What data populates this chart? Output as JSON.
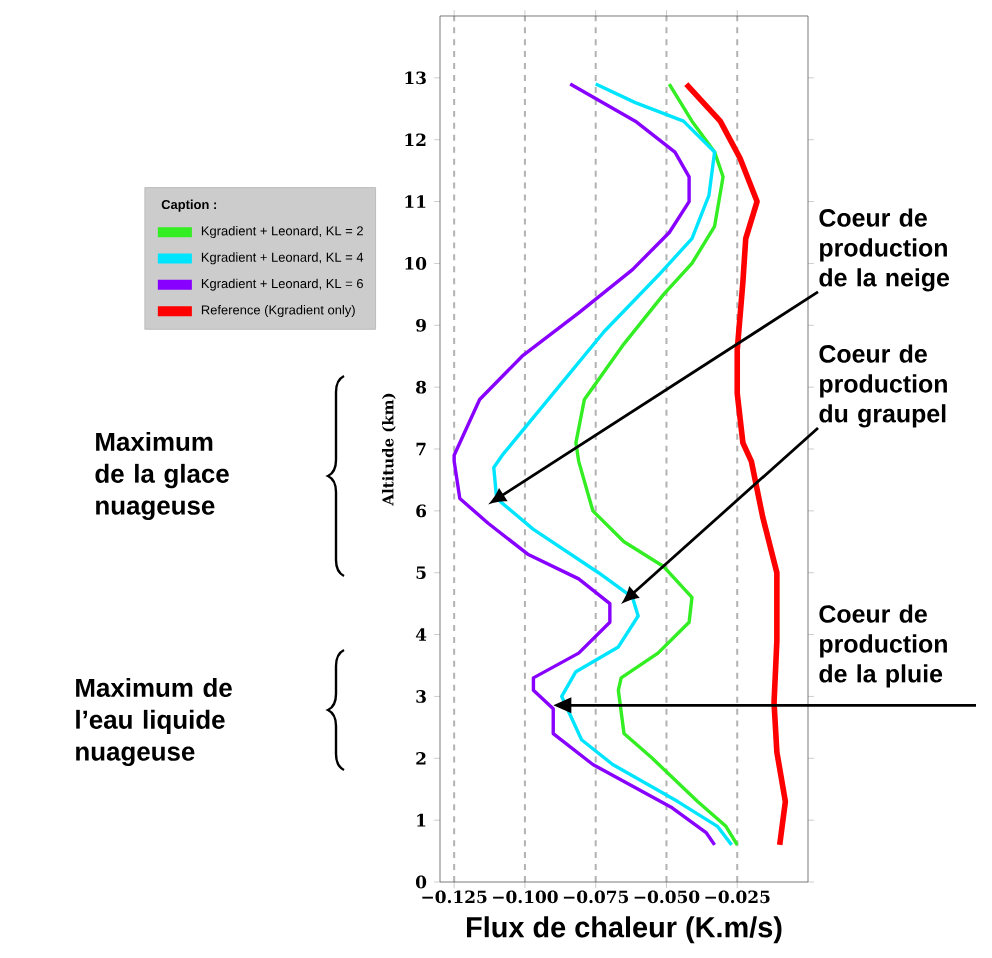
{
  "chart_data": {
    "type": "line",
    "xlabel": "Flux de chaleur (K.m/s)",
    "ylabel": "Altitude (km)",
    "legend_title": "Caption :",
    "xlim": [
      -0.13,
      0.0
    ],
    "ylim": [
      0,
      14
    ],
    "xticks": [
      {
        "value": -0.125,
        "label": "−0.125"
      },
      {
        "value": -0.1,
        "label": "−0.100"
      },
      {
        "value": -0.075,
        "label": "−0.075"
      },
      {
        "value": -0.05,
        "label": "−0.050"
      },
      {
        "value": -0.025,
        "label": "−0.025"
      }
    ],
    "yticks": [
      0,
      1,
      2,
      3,
      4,
      5,
      6,
      7,
      8,
      9,
      10,
      11,
      12,
      13
    ],
    "grid": "x",
    "legend": "left",
    "series": [
      {
        "name": "Kgradient + Leonard, KL = 2",
        "color": "#33ee22",
        "x": [
          -0.049,
          -0.041,
          -0.033,
          -0.03,
          -0.033,
          -0.041,
          -0.051,
          -0.065,
          -0.079,
          -0.082,
          -0.081,
          -0.076,
          -0.065,
          -0.051,
          -0.041,
          -0.042,
          -0.053,
          -0.066,
          -0.067,
          -0.065,
          -0.055,
          -0.039,
          -0.029,
          -0.025
        ],
        "values": [
          12.9,
          12.3,
          11.8,
          11.4,
          10.6,
          10.0,
          9.5,
          8.7,
          7.8,
          7.1,
          6.8,
          6.0,
          5.5,
          5.1,
          4.6,
          4.2,
          3.7,
          3.3,
          3.1,
          2.4,
          2.0,
          1.3,
          0.9,
          0.6
        ]
      },
      {
        "name": "Kgradient + Leonard, KL = 4",
        "color": "#00e5ff",
        "x": [
          -0.075,
          -0.061,
          -0.044,
          -0.033,
          -0.035,
          -0.041,
          -0.053,
          -0.072,
          -0.09,
          -0.108,
          -0.111,
          -0.11,
          -0.097,
          -0.074,
          -0.062,
          -0.06,
          -0.067,
          -0.082,
          -0.087,
          -0.08,
          -0.069,
          -0.046,
          -0.032,
          -0.027
        ],
        "values": [
          12.9,
          12.6,
          12.3,
          11.8,
          11.1,
          10.4,
          9.8,
          8.9,
          7.9,
          6.9,
          6.7,
          6.2,
          5.7,
          5.0,
          4.6,
          4.3,
          3.8,
          3.4,
          3.0,
          2.3,
          1.9,
          1.3,
          0.9,
          0.6
        ]
      },
      {
        "name": "Kgradient + Leonard, KL = 6",
        "color": "#8800ff",
        "x": [
          -0.084,
          -0.061,
          -0.047,
          -0.042,
          -0.042,
          -0.049,
          -0.062,
          -0.081,
          -0.101,
          -0.116,
          -0.125,
          -0.125,
          -0.123,
          -0.113,
          -0.099,
          -0.081,
          -0.07,
          -0.07,
          -0.081,
          -0.097,
          -0.097,
          -0.09,
          -0.09,
          -0.076,
          -0.048,
          -0.036,
          -0.033
        ],
        "values": [
          12.9,
          12.3,
          11.8,
          11.4,
          11.0,
          10.5,
          9.9,
          9.2,
          8.5,
          7.8,
          6.9,
          6.8,
          6.2,
          5.8,
          5.3,
          4.9,
          4.5,
          4.2,
          3.7,
          3.3,
          3.1,
          2.8,
          2.4,
          1.9,
          1.2,
          0.8,
          0.6
        ]
      },
      {
        "name": "Reference (Kgradient only)",
        "color": "#ff0000",
        "x": [
          -0.043,
          -0.031,
          -0.024,
          -0.018,
          -0.022,
          -0.023,
          -0.025,
          -0.025,
          -0.023,
          -0.02,
          -0.016,
          -0.011,
          -0.011,
          -0.012,
          -0.011,
          -0.008,
          -0.01
        ],
        "values": [
          12.9,
          12.3,
          11.7,
          11.0,
          10.4,
          9.7,
          8.6,
          7.9,
          7.1,
          6.8,
          5.9,
          5.0,
          3.9,
          2.9,
          2.1,
          1.3,
          0.6
        ]
      }
    ],
    "annotations": [
      "Maximum de la glace nuageuse",
      "Maximum de l’eau liquide nuageuse",
      "Coeur de production de la neige",
      "Coeur de production du graupel",
      "Coeur de production de la pluie"
    ]
  }
}
